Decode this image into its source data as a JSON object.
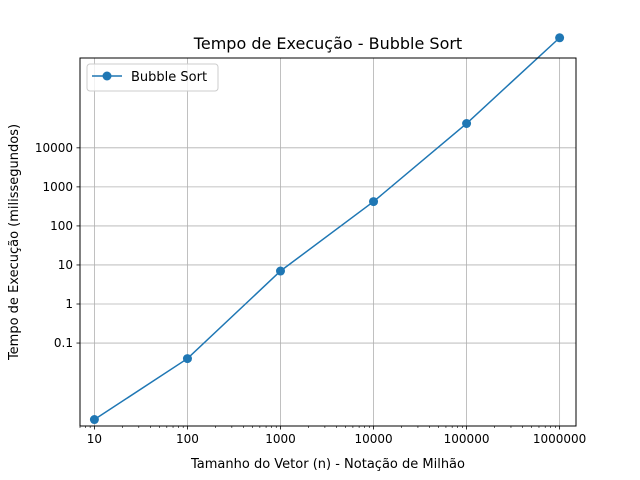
{
  "chart_data": {
    "type": "line",
    "title": "Tempo de Execução - Bubble Sort",
    "xlabel": "Tamanho do Vetor (n) - Notação de Milhão",
    "ylabel": "Tempo de Execução (milissegundos)",
    "xscale": "log",
    "yscale": "log",
    "xlim": [
      7,
      1500000
    ],
    "ylim": [
      0.00075,
      2000000
    ],
    "x_ticks": [
      10,
      100,
      1000,
      10000,
      100000,
      1000000
    ],
    "x_tick_labels": [
      "10",
      "100",
      "1000",
      "10000",
      "100000",
      "1000000"
    ],
    "y_ticks": [
      0.1,
      1,
      10,
      100,
      1000,
      10000
    ],
    "y_tick_labels": [
      "0.1",
      "1",
      "10",
      "100",
      "1000",
      "10000"
    ],
    "grid": true,
    "legend_position": "top-left",
    "series": [
      {
        "name": "Bubble Sort",
        "color": "#1f77b4",
        "marker": "circle",
        "x": [
          10,
          100,
          1000,
          10000,
          100000,
          1000000
        ],
        "y": [
          0.0011,
          0.04,
          7,
          420,
          42000,
          6600000
        ]
      }
    ]
  }
}
